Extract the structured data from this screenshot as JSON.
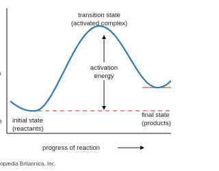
{
  "labels": {
    "transition_state": [
      "transition state",
      "(activated complex)"
    ],
    "activation_energy": [
      "activation",
      "energy"
    ],
    "final_state": [
      "final state",
      "(products)"
    ],
    "initial_state": [
      "initial state",
      "(reactants)"
    ],
    "x_axis": "progress of reaction",
    "left_edge": [
      "s",
      "n"
    ],
    "credit": "opædia Britannica, Inc."
  }
}
